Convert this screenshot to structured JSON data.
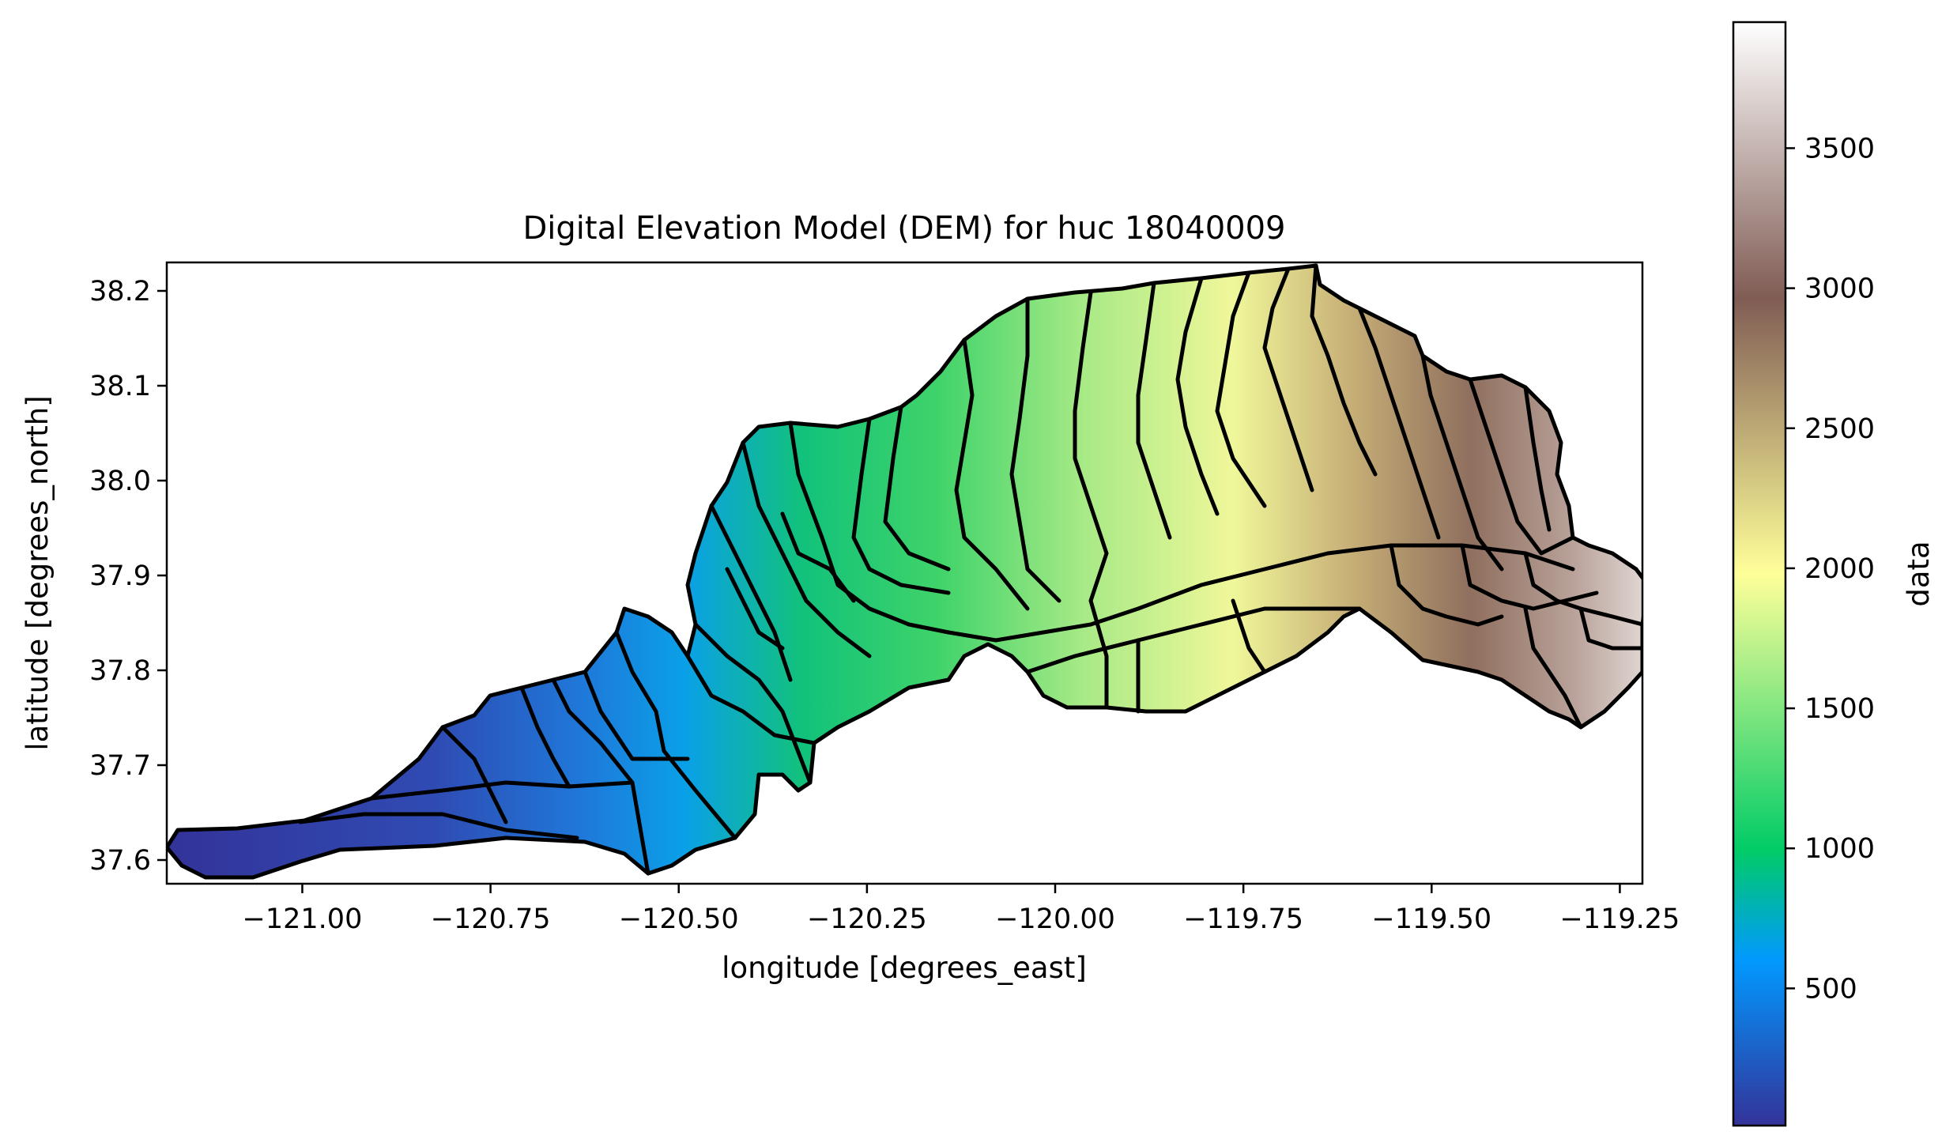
{
  "chart_data": {
    "type": "heatmap",
    "title": "Digital Elevation Model (DEM) for huc 18040009",
    "xlabel": "longitude [degrees_east]",
    "ylabel": "latitude [degrees_north]",
    "xlim": [
      -121.18,
      -119.22
    ],
    "ylim": [
      37.575,
      38.23
    ],
    "x_ticks": [
      -121.0,
      -120.75,
      -120.5,
      -120.25,
      -120.0,
      -119.75,
      -119.5,
      -119.25
    ],
    "x_tick_labels": [
      "−121.00",
      "−120.75",
      "−120.50",
      "−120.25",
      "−120.00",
      "−119.75",
      "−119.50",
      "−119.25"
    ],
    "y_ticks": [
      37.6,
      37.7,
      37.8,
      37.9,
      38.0,
      38.1,
      38.2
    ],
    "y_tick_labels": [
      "37.6",
      "37.7",
      "37.8",
      "37.9",
      "38.0",
      "38.1",
      "38.2"
    ],
    "colorbar": {
      "label": "data",
      "colormap": "terrain",
      "vmin": 10,
      "vmax": 3950,
      "ticks": [
        500,
        1000,
        1500,
        2000,
        2500,
        3000,
        3500
      ],
      "tick_labels": [
        "500",
        "1000",
        "1500",
        "2000",
        "2500",
        "3000",
        "3500"
      ]
    },
    "grid": false,
    "legend": "none",
    "boundary_color": "#000000",
    "subbasin_outlines": "black"
  }
}
